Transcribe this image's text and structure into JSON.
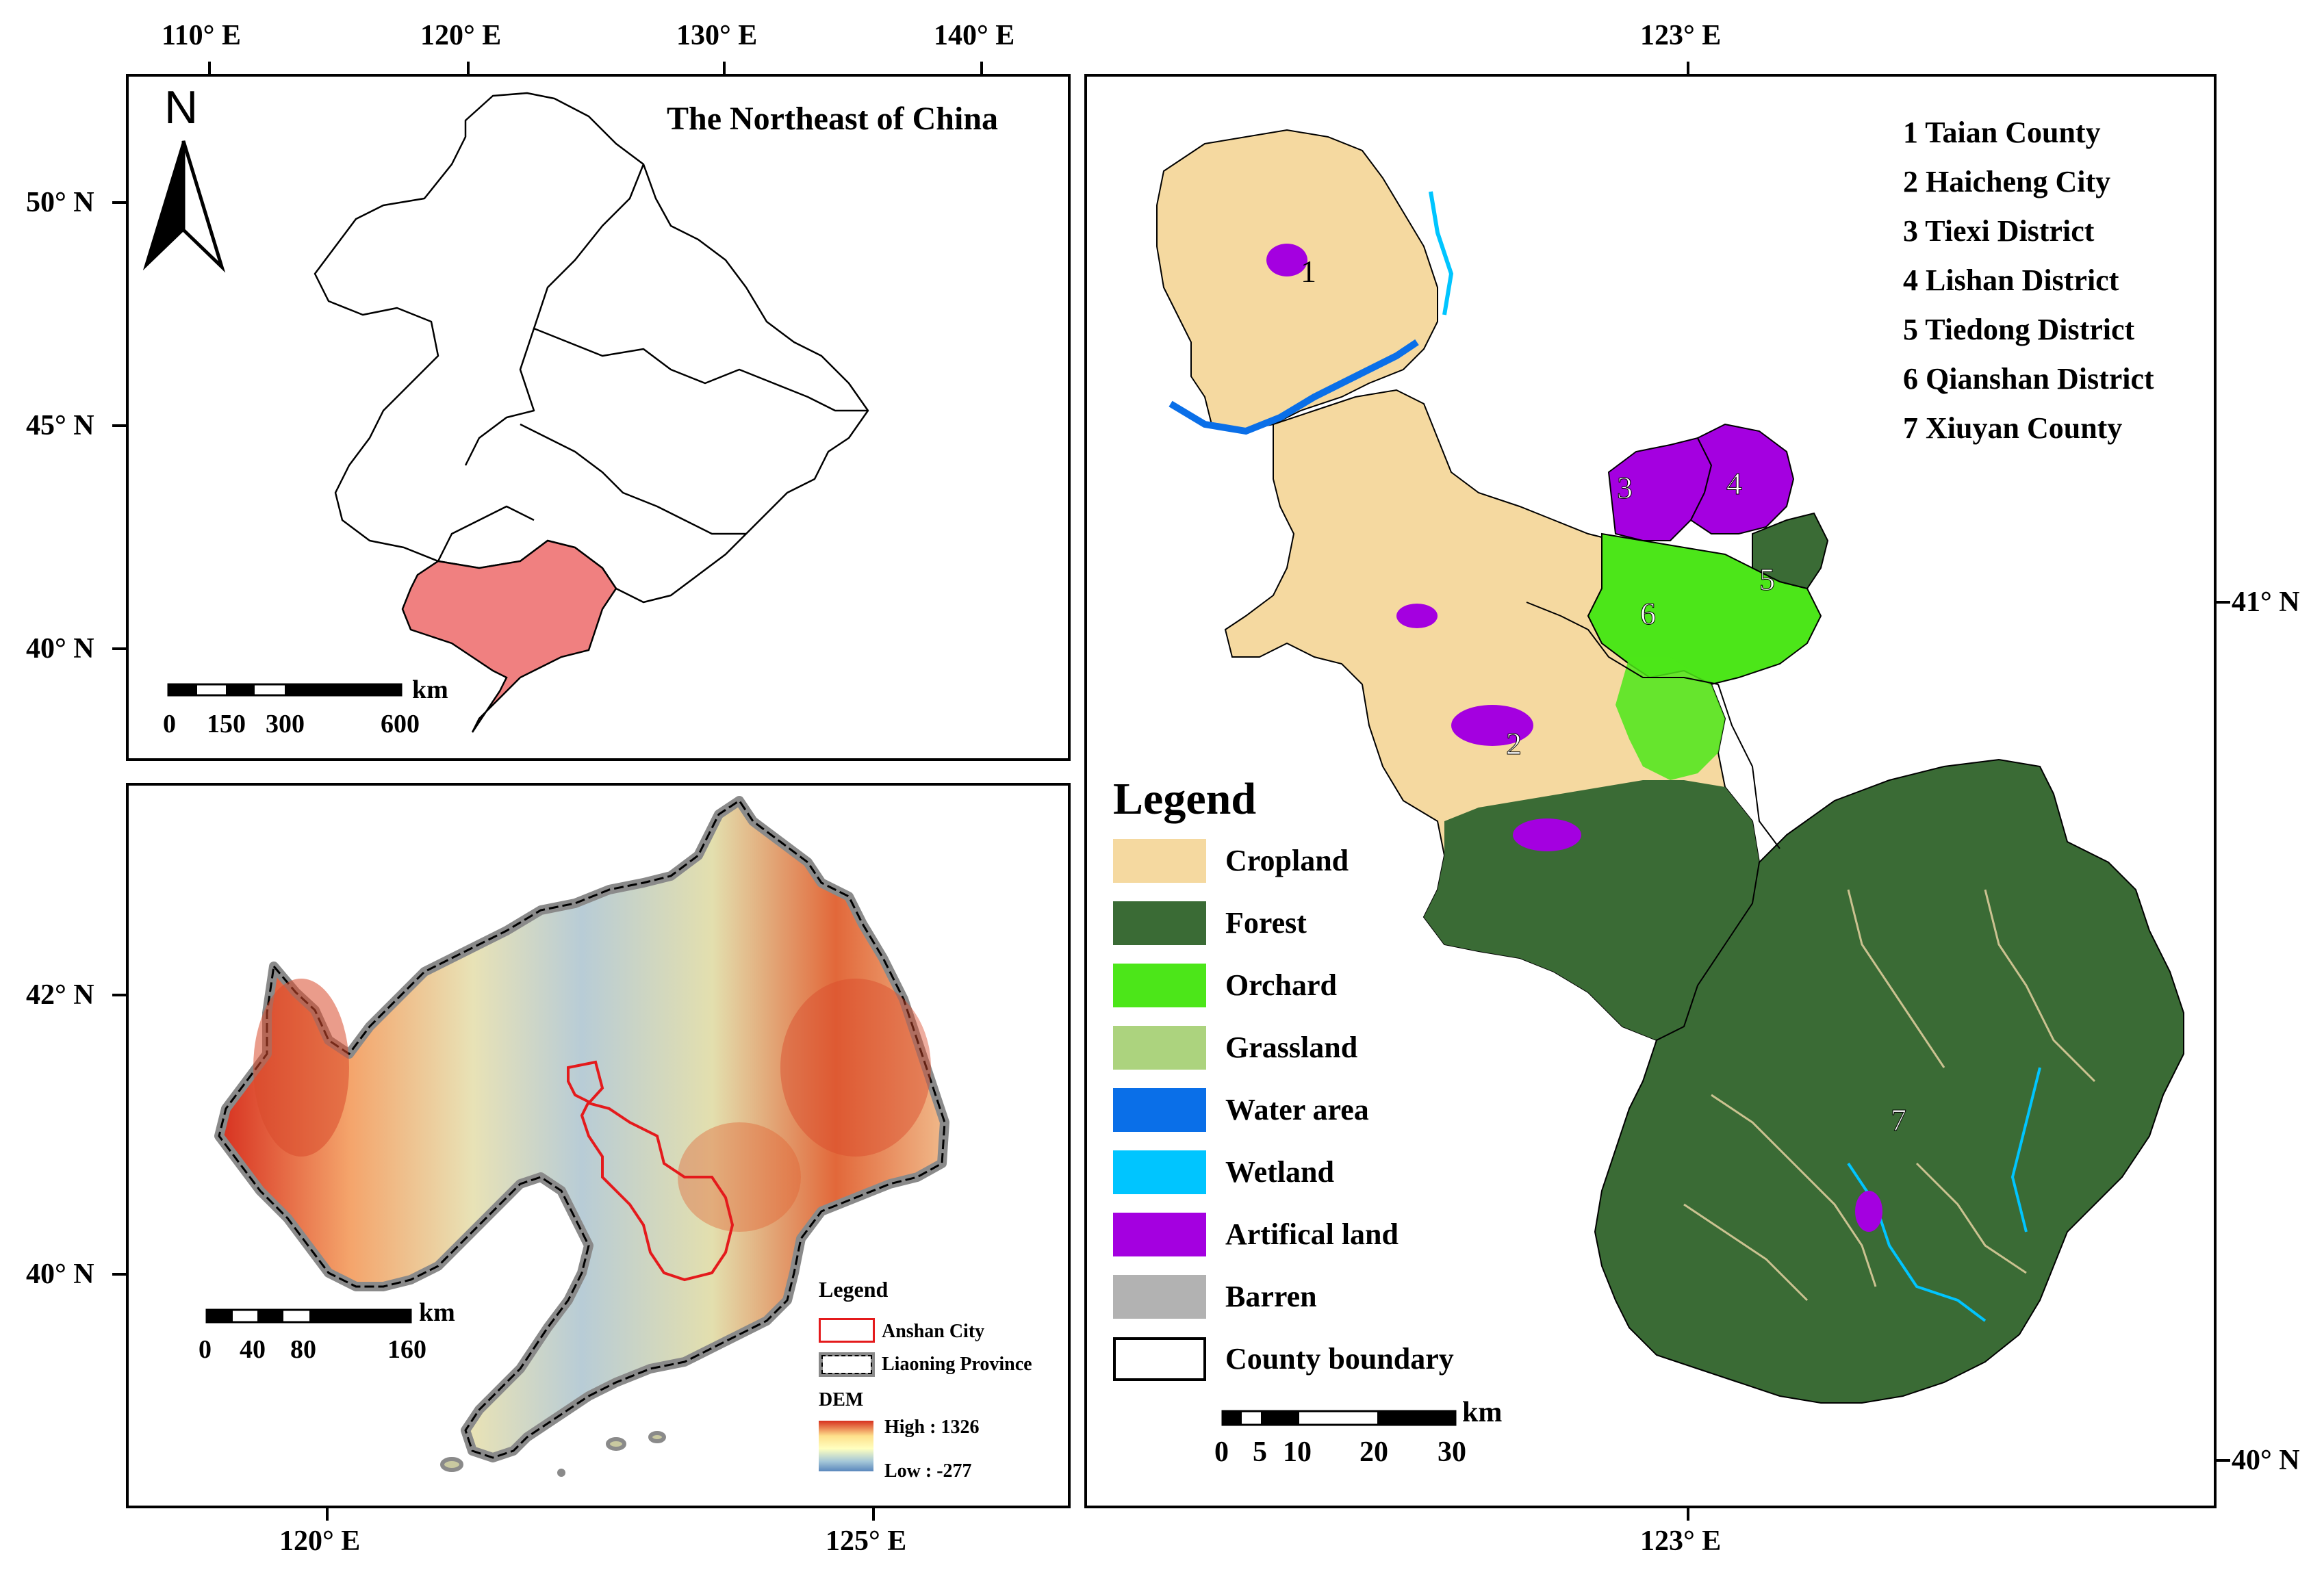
{
  "panel_a": {
    "title": "The Northeast of China",
    "north": "N",
    "top_ticks": [
      "110° E",
      "120° E",
      "130° E",
      "140° E"
    ],
    "left_ticks": [
      "50° N",
      "45° N",
      "40° N"
    ],
    "scale": {
      "labels": [
        "0",
        "150",
        "300",
        "600"
      ],
      "unit": "km"
    },
    "highlight_color": "#f08080"
  },
  "panel_b": {
    "bottom_ticks": [
      "120° E",
      "125° E"
    ],
    "left_ticks": [
      "42° N",
      "40° N"
    ],
    "scale": {
      "labels": [
        "0",
        "40",
        "80",
        "160"
      ],
      "unit": "km"
    },
    "legend": {
      "title": "Legend",
      "anshan": "Anshan City",
      "liaoning": "Liaoning Province",
      "dem_title": "DEM",
      "high": "High : 1326",
      "low": "Low : -277"
    },
    "dem_colors": [
      "#d7301f",
      "#fee08b",
      "#ffffbf",
      "#a6c8d8",
      "#5a87bd"
    ],
    "boundary_color": "#e41a1c"
  },
  "panel_c": {
    "top_tick": "123° E",
    "bottom_tick": "123° E",
    "right_ticks": [
      "41° N",
      "40° N"
    ],
    "counties": [
      "1 Taian County",
      "2 Haicheng City",
      "3 Tiexi District",
      "4 Lishan District",
      "5 Tiedong District",
      "6 Qianshan District",
      "7 Xiuyan County"
    ],
    "map_numbers": [
      "1",
      "2",
      "3",
      "4",
      "5",
      "6",
      "7"
    ],
    "legend_title": "Legend",
    "legend_items": [
      {
        "label": "Cropland",
        "color": "#f5d9a0"
      },
      {
        "label": "Forest",
        "color": "#3a6b35"
      },
      {
        "label": "Orchard",
        "color": "#4ce619"
      },
      {
        "label": "Grassland",
        "color": "#acd37e"
      },
      {
        "label": "Water area",
        "color": "#0a6fe8"
      },
      {
        "label": "Wetland",
        "color": "#00c5ff"
      },
      {
        "label": "Artifical land",
        "color": "#a400e0"
      },
      {
        "label": "Barren",
        "color": "#b2b2b2"
      },
      {
        "label": "County boundary",
        "color": "#ffffff"
      }
    ],
    "scale": {
      "labels": [
        "0",
        "5",
        "10",
        "20",
        "30"
      ],
      "unit": "km"
    }
  }
}
